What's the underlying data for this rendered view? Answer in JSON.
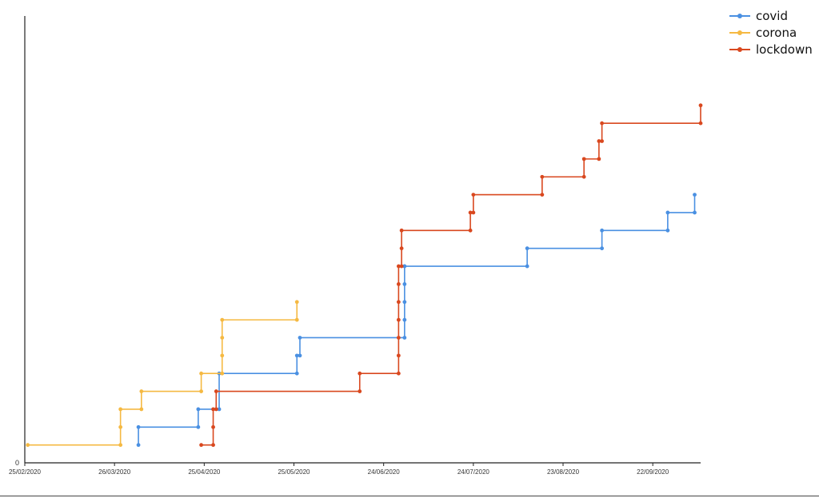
{
  "chart_data": {
    "type": "line",
    "step": true,
    "x_axis": {
      "type": "date",
      "range": [
        "2020-02-25",
        "2020-10-08"
      ],
      "ticks": [
        "2020-02-25",
        "2020-03-26",
        "2020-04-25",
        "2020-05-25",
        "2020-06-24",
        "2020-07-24",
        "2020-08-23",
        "2020-09-22"
      ],
      "tick_labels": [
        "25/02/2020",
        "26/03/2020",
        "25/04/2020",
        "25/05/2020",
        "24/06/2020",
        "24/07/2020",
        "23/08/2020",
        "22/09/2020"
      ]
    },
    "y_axis": {
      "range": [
        0,
        25
      ],
      "tick_labels": [
        "0"
      ]
    },
    "grid": false,
    "legend": "top-right",
    "series": [
      {
        "name": "covid",
        "color": "#4a90e2",
        "points": [
          [
            "2020-04-03",
            1
          ],
          [
            "2020-04-03",
            2
          ],
          [
            "2020-04-23",
            2
          ],
          [
            "2020-04-23",
            3
          ],
          [
            "2020-04-30",
            3
          ],
          [
            "2020-04-30",
            5
          ],
          [
            "2020-05-26",
            5
          ],
          [
            "2020-05-26",
            6
          ],
          [
            "2020-05-27",
            6
          ],
          [
            "2020-05-27",
            7
          ],
          [
            "2020-07-01",
            7
          ],
          [
            "2020-07-01",
            8
          ],
          [
            "2020-07-01",
            9
          ],
          [
            "2020-07-01",
            10
          ],
          [
            "2020-07-01",
            11
          ],
          [
            "2020-07-01",
            11
          ],
          [
            "2020-08-11",
            11
          ],
          [
            "2020-08-11",
            12
          ],
          [
            "2020-09-05",
            12
          ],
          [
            "2020-09-05",
            13
          ],
          [
            "2020-09-27",
            13
          ],
          [
            "2020-09-27",
            14
          ],
          [
            "2020-10-06",
            14
          ],
          [
            "2020-10-06",
            15
          ]
        ]
      },
      {
        "name": "corona",
        "color": "#f5b942",
        "points": [
          [
            "2020-02-26",
            1
          ],
          [
            "2020-03-28",
            1
          ],
          [
            "2020-03-28",
            2
          ],
          [
            "2020-03-28",
            3
          ],
          [
            "2020-04-04",
            3
          ],
          [
            "2020-04-04",
            4
          ],
          [
            "2020-04-24",
            4
          ],
          [
            "2020-04-24",
            5
          ],
          [
            "2020-05-01",
            5
          ],
          [
            "2020-05-01",
            6
          ],
          [
            "2020-05-01",
            7
          ],
          [
            "2020-05-01",
            8
          ],
          [
            "2020-05-26",
            8
          ],
          [
            "2020-05-26",
            9
          ]
        ]
      },
      {
        "name": "lockdown",
        "color": "#d9481f",
        "points": [
          [
            "2020-04-24",
            1
          ],
          [
            "2020-04-28",
            1
          ],
          [
            "2020-04-28",
            2
          ],
          [
            "2020-04-28",
            3
          ],
          [
            "2020-04-29",
            3
          ],
          [
            "2020-04-29",
            4
          ],
          [
            "2020-06-16",
            4
          ],
          [
            "2020-06-16",
            5
          ],
          [
            "2020-06-29",
            5
          ],
          [
            "2020-06-29",
            6
          ],
          [
            "2020-06-29",
            7
          ],
          [
            "2020-06-29",
            8
          ],
          [
            "2020-06-29",
            9
          ],
          [
            "2020-06-29",
            10
          ],
          [
            "2020-06-29",
            11
          ],
          [
            "2020-06-30",
            11
          ],
          [
            "2020-06-30",
            12
          ],
          [
            "2020-06-30",
            13
          ],
          [
            "2020-07-23",
            13
          ],
          [
            "2020-07-23",
            14
          ],
          [
            "2020-07-24",
            14
          ],
          [
            "2020-07-24",
            15
          ],
          [
            "2020-08-16",
            15
          ],
          [
            "2020-08-16",
            16
          ],
          [
            "2020-08-30",
            16
          ],
          [
            "2020-08-30",
            17
          ],
          [
            "2020-09-04",
            17
          ],
          [
            "2020-09-04",
            18
          ],
          [
            "2020-09-05",
            18
          ],
          [
            "2020-09-05",
            19
          ],
          [
            "2020-10-08",
            19
          ],
          [
            "2020-10-08",
            20
          ]
        ]
      }
    ]
  }
}
